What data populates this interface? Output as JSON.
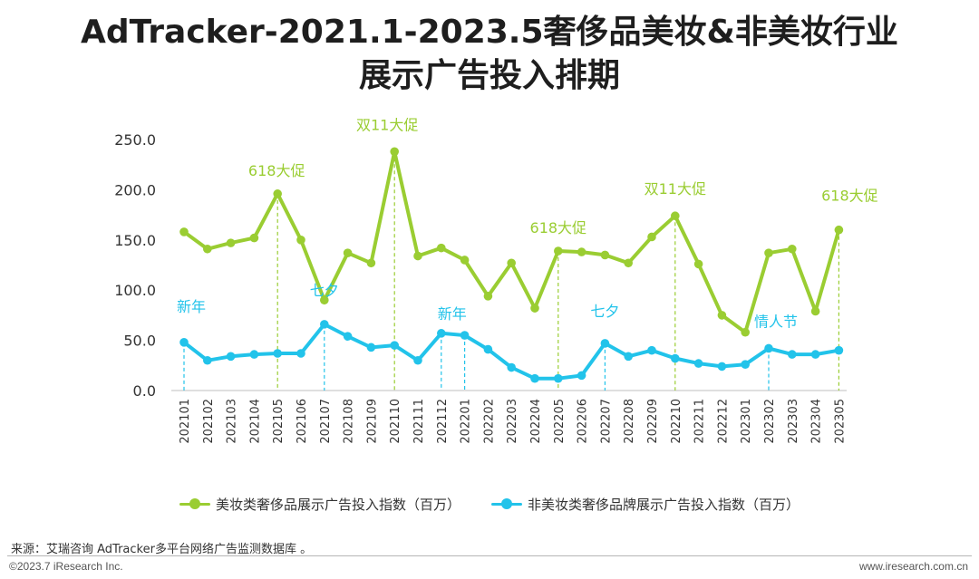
{
  "title": {
    "line1": "AdTracker-2021.1-2023.5奢侈品美妆&非美妆行业",
    "line2": "展示广告投入排期"
  },
  "chart_data": {
    "type": "line",
    "categories": [
      "202101",
      "202102",
      "202103",
      "202104",
      "202105",
      "202106",
      "202107",
      "202108",
      "202109",
      "202110",
      "202111",
      "202112",
      "202201",
      "202202",
      "202203",
      "202204",
      "202205",
      "202206",
      "202207",
      "202208",
      "202209",
      "202210",
      "202211",
      "202212",
      "202301",
      "202302",
      "202303",
      "202304",
      "202305"
    ],
    "ylim": [
      0,
      250
    ],
    "yticks": [
      "0.0",
      "50.0",
      "100.0",
      "150.0",
      "200.0",
      "250.0"
    ],
    "grid": false,
    "legend_position": "bottom",
    "series": [
      {
        "name": "美妆类奢侈品展示广告投入指数（百万）",
        "color": "#9ACD32",
        "values": [
          158,
          141,
          147,
          152,
          196,
          150,
          90,
          137,
          127,
          238,
          134,
          142,
          130,
          94,
          127,
          82,
          139,
          138,
          135,
          127,
          153,
          174,
          126,
          75,
          58,
          137,
          141,
          79,
          160
        ]
      },
      {
        "name": "非美妆类奢侈品牌展示广告投入指数（百万）",
        "color": "#22C3EA",
        "values": [
          48,
          30,
          34,
          36,
          37,
          37,
          66,
          54,
          43,
          45,
          30,
          57,
          55,
          41,
          23,
          12,
          12,
          15,
          47,
          34,
          40,
          32,
          27,
          24,
          26,
          42,
          36,
          36,
          40
        ]
      }
    ],
    "annotations": [
      {
        "text": "618大促",
        "series": 0,
        "index": 4
      },
      {
        "text": "双11大促",
        "series": 0,
        "index": 9
      },
      {
        "text": "618大促",
        "series": 0,
        "index": 16
      },
      {
        "text": "双11大促",
        "series": 0,
        "index": 21
      },
      {
        "text": "618大促",
        "series": 0,
        "index": 28
      },
      {
        "text": "新年",
        "series": 1,
        "index": 0
      },
      {
        "text": "七夕",
        "series": 1,
        "index": 6
      },
      {
        "text": "新年",
        "series": 1,
        "index": 11
      },
      {
        "text": "新年",
        "series": 1,
        "index": 12
      },
      {
        "text": "七夕",
        "series": 1,
        "index": 18
      },
      {
        "text": "情人节",
        "series": 1,
        "index": 25
      }
    ]
  },
  "source": "来源：艾瑞咨询 AdTracker多平台网络广告监测数据库 。",
  "footer": {
    "copyright": "©2023.7 iResearch Inc.",
    "website": "www.iresearch.com.cn"
  }
}
